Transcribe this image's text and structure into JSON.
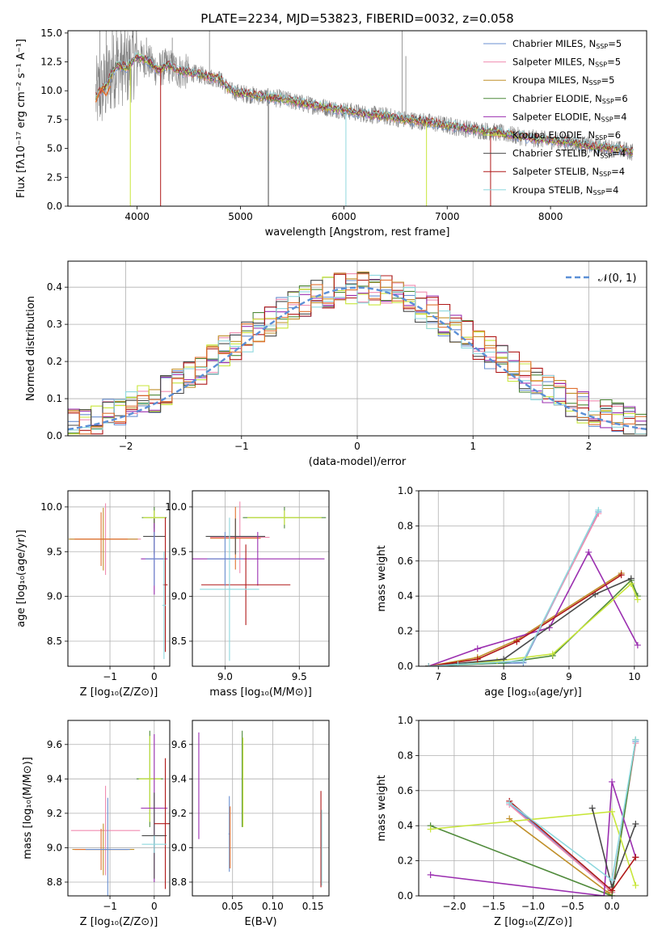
{
  "figure": {
    "title": "PLATE=2234, MJD=53823, FIBERID=0032, z=0.058"
  },
  "colors": {
    "Chabrier MILES": "#6a8fd0",
    "Salpeter MILES": "#f08cb0",
    "Kroupa MILES": "#c0902a",
    "Chabrier ELODIE": "#4f8a3a",
    "Salpeter ELODIE": "#9b2fb0",
    "Kroupa ELODIE": "#c8e63a",
    "Chabrier STELIB": "#4a4a4a",
    "Salpeter STELIB": "#b01818",
    "Kroupa STELIB": "#8ed8de",
    "data": "#808080",
    "normal": "#5b8fd6",
    "orange": "#e07030"
  },
  "chart_data": [
    {
      "id": "spectrum",
      "type": "line",
      "title": "PLATE=2234, MJD=53823, FIBERID=0032, z=0.058",
      "xlabel": "wavelength [Angstrom, rest frame]",
      "ylabel": "Flux [fλ10⁻¹⁷ erg cm⁻² s⁻¹ A⁻¹]",
      "xlim": [
        3330,
        8930
      ],
      "ylim": [
        0,
        15.2
      ],
      "xticks": [
        "4000",
        "5000",
        "6000",
        "7000",
        "8000"
      ],
      "yticks": [
        "0.0",
        "2.5",
        "5.0",
        "7.5",
        "10.0",
        "12.5",
        "15.0"
      ],
      "legend_position": "top-right",
      "legend": [
        {
          "name": "Chabrier MILES, N",
          "sub": "SSP",
          "tail": "=5"
        },
        {
          "name": "Salpeter MILES, N",
          "sub": "SSP",
          "tail": "=5"
        },
        {
          "name": "Kroupa MILES, N",
          "sub": "SSP",
          "tail": "=5"
        },
        {
          "name": "Chabrier ELODIE, N",
          "sub": "SSP",
          "tail": "=6"
        },
        {
          "name": "Salpeter ELODIE, N",
          "sub": "SSP",
          "tail": "=4"
        },
        {
          "name": "Kroupa ELODIE, N",
          "sub": "SSP",
          "tail": "=6"
        },
        {
          "name": "Chabrier STELIB, N",
          "sub": "SSP",
          "tail": "=4"
        },
        {
          "name": "Salpeter STELIB, N",
          "sub": "SSP",
          "tail": "=4"
        },
        {
          "name": "Kroupa STELIB, N",
          "sub": "SSP",
          "tail": "=4"
        }
      ],
      "continuum": {
        "x": [
          3600,
          3700,
          3800,
          3900,
          4000,
          4100,
          4200,
          4300,
          4400,
          4500,
          4600,
          4700,
          4800,
          4900,
          5000,
          5200,
          5400,
          5600,
          5800,
          6000,
          6200,
          6400,
          6600,
          6800,
          7000,
          7200,
          7400,
          7600,
          7800,
          8000,
          8200,
          8400,
          8600,
          8800
        ],
        "y": [
          9.5,
          10.5,
          12.2,
          12.0,
          13.0,
          12.6,
          11.8,
          12.2,
          11.7,
          11.6,
          11.4,
          11.2,
          11.0,
          10.0,
          9.8,
          9.5,
          9.3,
          8.9,
          8.6,
          8.3,
          8.0,
          7.8,
          7.5,
          7.3,
          7.0,
          6.7,
          6.5,
          6.2,
          5.9,
          5.7,
          5.5,
          5.2,
          5.0,
          4.7
        ]
      },
      "absorption_lines": [
        3934,
        4227,
        5270,
        6020,
        6800,
        7420
      ],
      "emission_lines": [
        4700,
        6565
      ]
    },
    {
      "id": "residuals",
      "type": "bar",
      "xlabel": "(data-model)/error",
      "ylabel": "Normed distribution",
      "xlim": [
        -2.5,
        2.5
      ],
      "ylim": [
        0,
        0.47
      ],
      "xticks": [
        "−2",
        "−1",
        "0",
        "1",
        "2"
      ],
      "yticks": [
        "0.0",
        "0.1",
        "0.2",
        "0.3",
        "0.4"
      ],
      "normal_label": "𝒩(0, 1)",
      "legend_position": "top-right"
    },
    {
      "id": "age-vs-Z",
      "type": "scatter",
      "xlabel": "Z [log₁₀(Z/Z⊙)]",
      "ylabel": "age  [log₁₀(age/yr)]",
      "xlim": [
        -1.95,
        0.35
      ],
      "ylim": [
        8.22,
        10.18
      ],
      "xticks": [
        "−1",
        "0"
      ],
      "yticks": [
        "8.5",
        "9.0",
        "9.5",
        "10.0"
      ]
    },
    {
      "id": "age-vs-mass",
      "type": "scatter",
      "xlabel": "mass [log₁₀(M/M⊙)]",
      "xlim": [
        8.78,
        9.7
      ],
      "ylim": [
        8.22,
        10.18
      ],
      "xticks": [
        "9.0",
        "9.5"
      ],
      "yticks": [
        "8.5",
        "9.0",
        "9.5",
        "10.0"
      ]
    },
    {
      "id": "massweight-vs-age",
      "type": "line",
      "xlabel": "age  [log₁₀(age/yr)]",
      "ylabel": "mass weight",
      "xlim": [
        6.7,
        10.2
      ],
      "ylim": [
        0,
        1.0
      ],
      "xticks": [
        "7",
        "8",
        "9",
        "10"
      ],
      "yticks": [
        "0.0",
        "0.2",
        "0.4",
        "0.6",
        "0.8",
        "1.0"
      ],
      "series": [
        {
          "model": "Chabrier MILES",
          "x": [
            6.85,
            7.3,
            8.3,
            9.45
          ],
          "y": [
            0.0,
            0.01,
            0.02,
            0.88
          ]
        },
        {
          "model": "Salpeter MILES",
          "x": [
            6.85,
            7.3,
            8.3,
            9.45
          ],
          "y": [
            0.0,
            0.01,
            0.03,
            0.87
          ]
        },
        {
          "model": "Kroupa MILES",
          "x": [
            6.85,
            7.6,
            8.2,
            9.8
          ],
          "y": [
            0.0,
            0.05,
            0.15,
            0.53
          ]
        },
        {
          "model": "Chabrier ELODIE",
          "x": [
            6.85,
            8.0,
            8.75,
            9.95,
            10.05
          ],
          "y": [
            0.0,
            0.02,
            0.06,
            0.49,
            0.4
          ]
        },
        {
          "model": "Salpeter ELODIE",
          "x": [
            6.85,
            7.6,
            8.7,
            9.3,
            10.05
          ],
          "y": [
            0.0,
            0.1,
            0.22,
            0.65,
            0.12
          ]
        },
        {
          "model": "Kroupa ELODIE",
          "x": [
            6.85,
            7.9,
            8.75,
            9.95,
            10.05
          ],
          "y": [
            0.0,
            0.03,
            0.07,
            0.47,
            0.38
          ]
        },
        {
          "model": "Chabrier STELIB",
          "x": [
            6.85,
            8.0,
            9.4,
            9.95
          ],
          "y": [
            0.0,
            0.04,
            0.41,
            0.5
          ]
        },
        {
          "model": "Salpeter STELIB",
          "x": [
            6.85,
            7.6,
            8.2,
            9.8
          ],
          "y": [
            0.0,
            0.04,
            0.14,
            0.52
          ]
        },
        {
          "model": "Kroupa STELIB",
          "x": [
            6.85,
            7.3,
            8.3,
            9.45
          ],
          "y": [
            0.0,
            0.01,
            0.03,
            0.89
          ]
        }
      ]
    },
    {
      "id": "mass-vs-Z",
      "type": "scatter",
      "xlabel": "Z [log₁₀(Z/Z⊙)]",
      "ylabel": "mass [log₁₀(M/M⊙)]",
      "xlim": [
        -1.95,
        0.35
      ],
      "ylim": [
        8.72,
        9.74
      ],
      "xticks": [
        "−1",
        "0"
      ],
      "yticks": [
        "8.8",
        "9.0",
        "9.2",
        "9.4",
        "9.6"
      ]
    },
    {
      "id": "mass-vs-ebv",
      "type": "scatter",
      "xlabel": "E(B-V)",
      "xlim": [
        0.0,
        0.17
      ],
      "ylim": [
        8.72,
        9.74
      ],
      "xticks": [
        "0.05",
        "0.10",
        "0.15"
      ],
      "yticks": [
        "8.8",
        "9.0",
        "9.2",
        "9.4",
        "9.6"
      ]
    },
    {
      "id": "massweight-vs-Z",
      "type": "line",
      "xlabel": "Z [log₁₀(Z/Z⊙)]",
      "ylabel": "mass weight",
      "xlim": [
        -2.45,
        0.45
      ],
      "ylim": [
        0,
        1.0
      ],
      "xticks": [
        "−2.0",
        "−1.5",
        "−1.0",
        "−0.5",
        "0.0"
      ],
      "yticks": [
        "0.0",
        "0.2",
        "0.4",
        "0.6",
        "0.8",
        "1.0"
      ],
      "series": [
        {
          "model": "Chabrier MILES",
          "x": [
            -1.3,
            0.0,
            0.3
          ],
          "y": [
            0.53,
            0.02,
            0.88
          ]
        },
        {
          "model": "Salpeter MILES",
          "x": [
            -1.3,
            0.0,
            0.3
          ],
          "y": [
            0.52,
            0.02,
            0.87
          ]
        },
        {
          "model": "Kroupa MILES",
          "x": [
            -1.3,
            -0.05,
            0.0
          ],
          "y": [
            0.44,
            0.02,
            0.0
          ]
        },
        {
          "model": "Chabrier ELODIE",
          "x": [
            -2.3,
            0.0,
            0.3
          ],
          "y": [
            0.4,
            0.0,
            0.89
          ]
        },
        {
          "model": "Salpeter ELODIE",
          "x": [
            -2.3,
            -0.1,
            0.0,
            0.3
          ],
          "y": [
            0.12,
            0.0,
            0.65,
            0.22
          ]
        },
        {
          "model": "Kroupa ELODIE",
          "x": [
            -2.3,
            0.0,
            0.3
          ],
          "y": [
            0.38,
            0.48,
            0.06
          ]
        },
        {
          "model": "Chabrier STELIB",
          "x": [
            -0.25,
            0.0,
            0.3
          ],
          "y": [
            0.5,
            0.05,
            0.41
          ]
        },
        {
          "model": "Salpeter STELIB",
          "x": [
            -1.3,
            0.0,
            0.3
          ],
          "y": [
            0.54,
            0.03,
            0.22
          ]
        },
        {
          "model": "Kroupa STELIB",
          "x": [
            -1.3,
            0.0,
            0.3
          ],
          "y": [
            0.53,
            0.09,
            0.89
          ]
        }
      ]
    }
  ]
}
